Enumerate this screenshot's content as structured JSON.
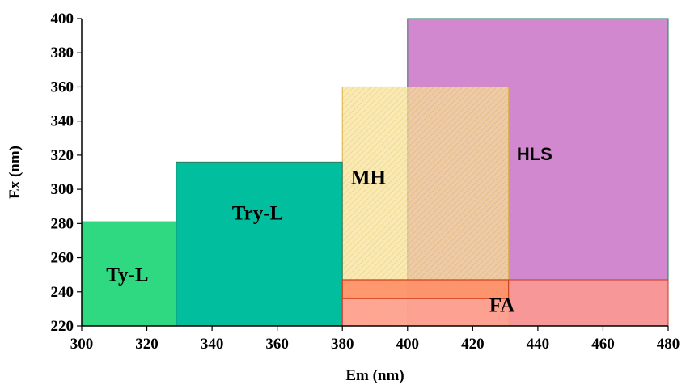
{
  "chart_data": {
    "type": "region",
    "xlabel": "Em (nm)",
    "ylabel": "Ex (nm)",
    "xlim": [
      300,
      480
    ],
    "ylim": [
      220,
      400
    ],
    "xticks": [
      300,
      320,
      340,
      360,
      380,
      400,
      420,
      440,
      460,
      480
    ],
    "yticks": [
      220,
      240,
      260,
      280,
      300,
      320,
      340,
      360,
      380,
      400
    ],
    "grid": false,
    "regions": [
      {
        "name": "HLS",
        "x": [
          400,
          480
        ],
        "y": [
          220,
          400
        ],
        "color": "#cc78c8",
        "opacity": 0.88,
        "label_at": [
          439,
          321
        ],
        "label_font": "sans"
      },
      {
        "name": "MH",
        "x": [
          380,
          431
        ],
        "y": [
          220,
          360
        ],
        "color": "#f5dc82",
        "opacity": 0.75,
        "hatched": true,
        "label_at": [
          388,
          307
        ],
        "label_font": "serif"
      },
      {
        "name": "Ty-L",
        "x": [
          300,
          329
        ],
        "y": [
          220,
          281
        ],
        "color": "#2fd982",
        "opacity": 1,
        "label_at": [
          314,
          250
        ],
        "label_font": "serif"
      },
      {
        "name": "Try-L",
        "x": [
          329,
          380
        ],
        "y": [
          220,
          316
        ],
        "color": "#00be9e",
        "opacity": 1,
        "label_at": [
          354,
          286
        ],
        "label_font": "serif"
      },
      {
        "name": "FA",
        "x": [
          380,
          480
        ],
        "y": [
          220,
          247
        ],
        "color": "#ff9a8e",
        "opacity": 0.85,
        "inner_band_y": [
          236,
          247
        ],
        "label_at": [
          429,
          232
        ],
        "label_font": "serif"
      }
    ]
  }
}
